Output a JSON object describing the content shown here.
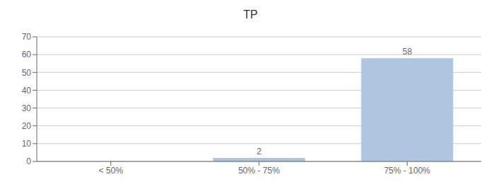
{
  "chart_data": {
    "type": "bar",
    "title": "TP",
    "categories": [
      "< 50%",
      "50% - 75%",
      "75% - 100%"
    ],
    "values": [
      0,
      2,
      58
    ],
    "color": "#aec6e0",
    "ylim": [
      0,
      70
    ],
    "yticks": [
      0,
      10,
      20,
      30,
      40,
      50,
      60,
      70
    ],
    "grid": true,
    "data_labels": true
  }
}
